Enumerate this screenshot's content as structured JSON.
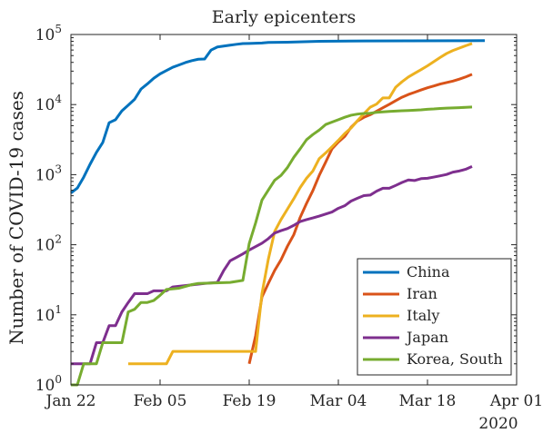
{
  "chart_data": {
    "type": "line",
    "title": "Early epicenters",
    "xlabel": "",
    "ylabel": "Number of COVID-19 cases",
    "y_scale": "log",
    "ylim": [
      1,
      100000
    ],
    "xlim": [
      "2020-01-22",
      "2020-04-01"
    ],
    "grid": false,
    "legend_position": "bottom-right",
    "x_ticks": [
      {
        "date": "2020-01-22",
        "label": "Jan 22"
      },
      {
        "date": "2020-02-05",
        "label": "Feb 05"
      },
      {
        "date": "2020-02-19",
        "label": "Feb 19"
      },
      {
        "date": "2020-03-04",
        "label": "Mar 04"
      },
      {
        "date": "2020-03-18",
        "label": "Mar 18"
      },
      {
        "date": "2020-04-01",
        "label": "Apr 01"
      }
    ],
    "x_secondary_label": "2020",
    "y_ticks": [
      {
        "value": 1,
        "base": "10",
        "exp": "0"
      },
      {
        "value": 10,
        "base": "10",
        "exp": "1"
      },
      {
        "value": 100,
        "base": "10",
        "exp": "2"
      },
      {
        "value": 1000,
        "base": "10",
        "exp": "3"
      },
      {
        "value": 10000,
        "base": "10",
        "exp": "4"
      },
      {
        "value": 100000,
        "base": "10",
        "exp": "5"
      }
    ],
    "series": [
      {
        "name": "China",
        "color": "#0072BD",
        "points": [
          [
            "2020-01-22",
            548
          ],
          [
            "2020-01-23",
            643
          ],
          [
            "2020-01-24",
            920
          ],
          [
            "2020-01-25",
            1406
          ],
          [
            "2020-01-26",
            2075
          ],
          [
            "2020-01-27",
            2877
          ],
          [
            "2020-01-28",
            5509
          ],
          [
            "2020-01-29",
            6087
          ],
          [
            "2020-01-30",
            8141
          ],
          [
            "2020-01-31",
            9802
          ],
          [
            "2020-02-01",
            11891
          ],
          [
            "2020-02-02",
            16630
          ],
          [
            "2020-02-03",
            19716
          ],
          [
            "2020-02-04",
            23707
          ],
          [
            "2020-02-05",
            27440
          ],
          [
            "2020-02-06",
            30587
          ],
          [
            "2020-02-07",
            34110
          ],
          [
            "2020-02-08",
            36814
          ],
          [
            "2020-02-09",
            39829
          ],
          [
            "2020-02-10",
            42354
          ],
          [
            "2020-02-11",
            44386
          ],
          [
            "2020-02-12",
            44759
          ],
          [
            "2020-02-13",
            59895
          ],
          [
            "2020-02-14",
            66358
          ],
          [
            "2020-02-15",
            68413
          ],
          [
            "2020-02-16",
            70513
          ],
          [
            "2020-02-17",
            72434
          ],
          [
            "2020-02-18",
            74211
          ],
          [
            "2020-02-19",
            74619
          ],
          [
            "2020-02-20",
            75077
          ],
          [
            "2020-02-21",
            75550
          ],
          [
            "2020-02-22",
            77001
          ],
          [
            "2020-02-25",
            77660
          ],
          [
            "2020-03-01",
            79968
          ],
          [
            "2020-03-08",
            80735
          ],
          [
            "2020-03-15",
            81003
          ],
          [
            "2020-03-22",
            81397
          ],
          [
            "2020-03-27",
            81897
          ]
        ]
      },
      {
        "name": "Iran",
        "color": "#D95319",
        "points": [
          [
            "2020-02-19",
            2
          ],
          [
            "2020-02-20",
            5
          ],
          [
            "2020-02-21",
            18
          ],
          [
            "2020-02-22",
            28
          ],
          [
            "2020-02-23",
            43
          ],
          [
            "2020-02-24",
            61
          ],
          [
            "2020-02-25",
            95
          ],
          [
            "2020-02-26",
            139
          ],
          [
            "2020-02-27",
            245
          ],
          [
            "2020-02-28",
            388
          ],
          [
            "2020-02-29",
            593
          ],
          [
            "2020-03-01",
            978
          ],
          [
            "2020-03-02",
            1501
          ],
          [
            "2020-03-03",
            2336
          ],
          [
            "2020-03-04",
            2922
          ],
          [
            "2020-03-05",
            3513
          ],
          [
            "2020-03-06",
            4747
          ],
          [
            "2020-03-07",
            5823
          ],
          [
            "2020-03-08",
            6566
          ],
          [
            "2020-03-09",
            7161
          ],
          [
            "2020-03-10",
            8042
          ],
          [
            "2020-03-11",
            9000
          ],
          [
            "2020-03-12",
            10075
          ],
          [
            "2020-03-13",
            11364
          ],
          [
            "2020-03-14",
            12729
          ],
          [
            "2020-03-15",
            13938
          ],
          [
            "2020-03-16",
            14991
          ],
          [
            "2020-03-17",
            16169
          ],
          [
            "2020-03-18",
            17361
          ],
          [
            "2020-03-19",
            18407
          ],
          [
            "2020-03-20",
            19644
          ],
          [
            "2020-03-21",
            20610
          ],
          [
            "2020-03-22",
            21638
          ],
          [
            "2020-03-23",
            23049
          ],
          [
            "2020-03-24",
            24811
          ],
          [
            "2020-03-25",
            27017
          ]
        ]
      },
      {
        "name": "Italy",
        "color": "#EDB120",
        "points": [
          [
            "2020-01-31",
            2
          ],
          [
            "2020-02-06",
            2
          ],
          [
            "2020-02-07",
            3
          ],
          [
            "2020-02-20",
            3
          ],
          [
            "2020-02-21",
            20
          ],
          [
            "2020-02-22",
            62
          ],
          [
            "2020-02-23",
            155
          ],
          [
            "2020-02-24",
            229
          ],
          [
            "2020-02-25",
            322
          ],
          [
            "2020-02-26",
            453
          ],
          [
            "2020-02-27",
            655
          ],
          [
            "2020-02-28",
            888
          ],
          [
            "2020-02-29",
            1128
          ],
          [
            "2020-03-01",
            1694
          ],
          [
            "2020-03-02",
            2036
          ],
          [
            "2020-03-03",
            2502
          ],
          [
            "2020-03-04",
            3089
          ],
          [
            "2020-03-05",
            3858
          ],
          [
            "2020-03-06",
            4636
          ],
          [
            "2020-03-07",
            5883
          ],
          [
            "2020-03-08",
            7375
          ],
          [
            "2020-03-09",
            9172
          ],
          [
            "2020-03-10",
            10149
          ],
          [
            "2020-03-11",
            12462
          ],
          [
            "2020-03-12",
            12462
          ],
          [
            "2020-03-13",
            17660
          ],
          [
            "2020-03-14",
            21157
          ],
          [
            "2020-03-15",
            24747
          ],
          [
            "2020-03-16",
            27980
          ],
          [
            "2020-03-17",
            31506
          ],
          [
            "2020-03-18",
            35713
          ],
          [
            "2020-03-19",
            41035
          ],
          [
            "2020-03-20",
            47021
          ],
          [
            "2020-03-21",
            53578
          ],
          [
            "2020-03-22",
            59138
          ],
          [
            "2020-03-23",
            63927
          ],
          [
            "2020-03-24",
            69176
          ],
          [
            "2020-03-25",
            74386
          ]
        ]
      },
      {
        "name": "Japan",
        "color": "#7E2F8E",
        "points": [
          [
            "2020-01-22",
            2
          ],
          [
            "2020-01-25",
            2
          ],
          [
            "2020-01-26",
            4
          ],
          [
            "2020-01-27",
            4
          ],
          [
            "2020-01-28",
            7
          ],
          [
            "2020-01-29",
            7
          ],
          [
            "2020-01-30",
            11
          ],
          [
            "2020-01-31",
            15
          ],
          [
            "2020-02-01",
            20
          ],
          [
            "2020-02-03",
            20
          ],
          [
            "2020-02-04",
            22
          ],
          [
            "2020-02-06",
            22
          ],
          [
            "2020-02-07",
            25
          ],
          [
            "2020-02-12",
            28
          ],
          [
            "2020-02-14",
            29
          ],
          [
            "2020-02-15",
            43
          ],
          [
            "2020-02-16",
            59
          ],
          [
            "2020-02-17",
            66
          ],
          [
            "2020-02-18",
            74
          ],
          [
            "2020-02-19",
            84
          ],
          [
            "2020-02-20",
            94
          ],
          [
            "2020-02-21",
            105
          ],
          [
            "2020-02-22",
            122
          ],
          [
            "2020-02-23",
            147
          ],
          [
            "2020-02-24",
            159
          ],
          [
            "2020-02-25",
            170
          ],
          [
            "2020-02-26",
            189
          ],
          [
            "2020-02-27",
            214
          ],
          [
            "2020-02-28",
            228
          ],
          [
            "2020-02-29",
            241
          ],
          [
            "2020-03-01",
            256
          ],
          [
            "2020-03-02",
            274
          ],
          [
            "2020-03-03",
            293
          ],
          [
            "2020-03-04",
            331
          ],
          [
            "2020-03-05",
            360
          ],
          [
            "2020-03-06",
            420
          ],
          [
            "2020-03-07",
            461
          ],
          [
            "2020-03-08",
            502
          ],
          [
            "2020-03-09",
            511
          ],
          [
            "2020-03-10",
            581
          ],
          [
            "2020-03-11",
            639
          ],
          [
            "2020-03-12",
            639
          ],
          [
            "2020-03-13",
            701
          ],
          [
            "2020-03-14",
            773
          ],
          [
            "2020-03-15",
            839
          ],
          [
            "2020-03-16",
            825
          ],
          [
            "2020-03-17",
            878
          ],
          [
            "2020-03-18",
            889
          ],
          [
            "2020-03-19",
            924
          ],
          [
            "2020-03-20",
            963
          ],
          [
            "2020-03-21",
            1007
          ],
          [
            "2020-03-22",
            1086
          ],
          [
            "2020-03-23",
            1128
          ],
          [
            "2020-03-24",
            1193
          ],
          [
            "2020-03-25",
            1307
          ]
        ]
      },
      {
        "name": "Korea, South",
        "color": "#77AC30",
        "points": [
          [
            "2020-01-22",
            1
          ],
          [
            "2020-01-23",
            1
          ],
          [
            "2020-01-24",
            2
          ],
          [
            "2020-01-26",
            2
          ],
          [
            "2020-01-27",
            4
          ],
          [
            "2020-01-30",
            4
          ],
          [
            "2020-01-31",
            11
          ],
          [
            "2020-02-01",
            12
          ],
          [
            "2020-02-02",
            15
          ],
          [
            "2020-02-03",
            15
          ],
          [
            "2020-02-04",
            16
          ],
          [
            "2020-02-05",
            19
          ],
          [
            "2020-02-06",
            23
          ],
          [
            "2020-02-08",
            24
          ],
          [
            "2020-02-10",
            27
          ],
          [
            "2020-02-11",
            28
          ],
          [
            "2020-02-16",
            29
          ],
          [
            "2020-02-17",
            30
          ],
          [
            "2020-02-18",
            31
          ],
          [
            "2020-02-19",
            104
          ],
          [
            "2020-02-20",
            204
          ],
          [
            "2020-02-21",
            433
          ],
          [
            "2020-02-22",
            602
          ],
          [
            "2020-02-23",
            833
          ],
          [
            "2020-02-24",
            977
          ],
          [
            "2020-02-25",
            1261
          ],
          [
            "2020-02-26",
            1766
          ],
          [
            "2020-02-27",
            2337
          ],
          [
            "2020-02-28",
            3150
          ],
          [
            "2020-02-29",
            3736
          ],
          [
            "2020-03-01",
            4335
          ],
          [
            "2020-03-02",
            5186
          ],
          [
            "2020-03-03",
            5621
          ],
          [
            "2020-03-04",
            6088
          ],
          [
            "2020-03-05",
            6593
          ],
          [
            "2020-03-06",
            7041
          ],
          [
            "2020-03-07",
            7314
          ],
          [
            "2020-03-08",
            7478
          ],
          [
            "2020-03-09",
            7513
          ],
          [
            "2020-03-10",
            7755
          ],
          [
            "2020-03-11",
            7869
          ],
          [
            "2020-03-12",
            7979
          ],
          [
            "2020-03-13",
            8086
          ],
          [
            "2020-03-14",
            8162
          ],
          [
            "2020-03-15",
            8236
          ],
          [
            "2020-03-16",
            8320
          ],
          [
            "2020-03-17",
            8413
          ],
          [
            "2020-03-18",
            8565
          ],
          [
            "2020-03-19",
            8652
          ],
          [
            "2020-03-20",
            8799
          ],
          [
            "2020-03-21",
            8897
          ],
          [
            "2020-03-22",
            8961
          ],
          [
            "2020-03-23",
            9037
          ],
          [
            "2020-03-24",
            9137
          ],
          [
            "2020-03-25",
            9241
          ]
        ]
      }
    ]
  }
}
